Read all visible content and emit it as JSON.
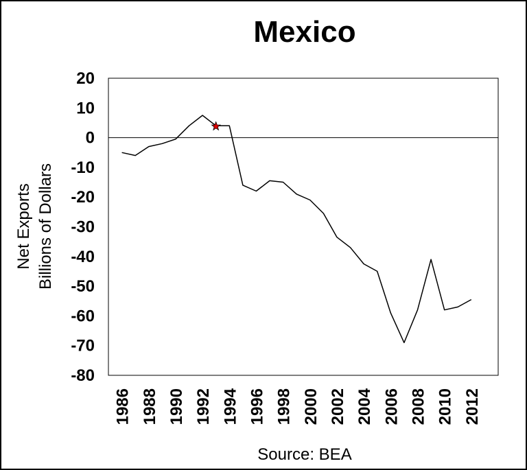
{
  "chart_data": {
    "type": "line",
    "title": "Mexico",
    "ylabel_line1": "Net Exports",
    "ylabel_line2": "Billions of Dollars",
    "source": "Source: BEA",
    "ylim": [
      -80,
      20
    ],
    "yticks": [
      20,
      10,
      0,
      -10,
      -20,
      -30,
      -40,
      -50,
      -60,
      -70,
      -80
    ],
    "xlim": [
      1985,
      2014
    ],
    "xticks": [
      1986,
      1988,
      1990,
      1992,
      1994,
      1996,
      1998,
      2000,
      2002,
      2004,
      2006,
      2008,
      2010,
      2012
    ],
    "grid": false,
    "zero_line": true,
    "series": [
      {
        "x": [
          1986,
          1987,
          1988,
          1989,
          1990,
          1991,
          1992,
          1993,
          1994,
          1995,
          1996,
          1997,
          1998,
          1999,
          2000,
          2001,
          2002,
          2003,
          2004,
          2005,
          2006,
          2007,
          2008,
          2009,
          2010,
          2011,
          2012
        ],
        "y": [
          -5,
          -6,
          -3,
          -2,
          -0.5,
          4,
          7.5,
          4,
          4,
          -16,
          -18,
          -14.5,
          -15,
          -19,
          -21,
          -25.5,
          -33.5,
          -37,
          -42.5,
          -45,
          -59,
          -69,
          -58,
          -41,
          -58,
          -57,
          -54.5
        ],
        "color": "#000000"
      }
    ],
    "marker": {
      "x": 1993,
      "y": 3.8,
      "shape": "star",
      "color": "#e00000"
    }
  }
}
